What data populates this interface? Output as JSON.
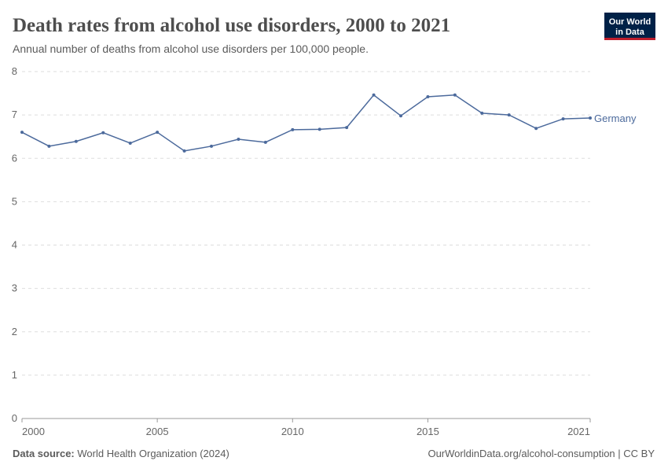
{
  "chart_data": {
    "type": "line",
    "title": "Death rates from alcohol use disorders, 2000 to 2021",
    "subtitle": "Annual number of deaths from alcohol use disorders per 100,000 people.",
    "x": [
      2000,
      2001,
      2002,
      2003,
      2004,
      2005,
      2006,
      2007,
      2008,
      2009,
      2010,
      2011,
      2012,
      2013,
      2014,
      2015,
      2016,
      2017,
      2018,
      2019,
      2020,
      2021
    ],
    "series": [
      {
        "name": "Germany",
        "color": "#4c6a9c",
        "values": [
          6.6,
          6.28,
          6.39,
          6.59,
          6.35,
          6.6,
          6.17,
          6.28,
          6.44,
          6.37,
          6.66,
          6.67,
          6.71,
          7.46,
          6.98,
          7.42,
          7.46,
          7.04,
          7.0,
          6.69,
          6.91,
          6.93
        ]
      }
    ],
    "xlim": [
      2000,
      2021
    ],
    "xticks": [
      2000,
      2005,
      2010,
      2015,
      2021
    ],
    "ylim": [
      0,
      8
    ],
    "yticks": [
      0,
      1,
      2,
      3,
      4,
      5,
      6,
      7,
      8
    ],
    "grid": true
  },
  "logo": [
    "Our World",
    "in Data"
  ],
  "footer": {
    "source_label": "Data source:",
    "source": "World Health Organization (2024)",
    "link": "OurWorldinData.org/alcohol-consumption | CC BY"
  }
}
